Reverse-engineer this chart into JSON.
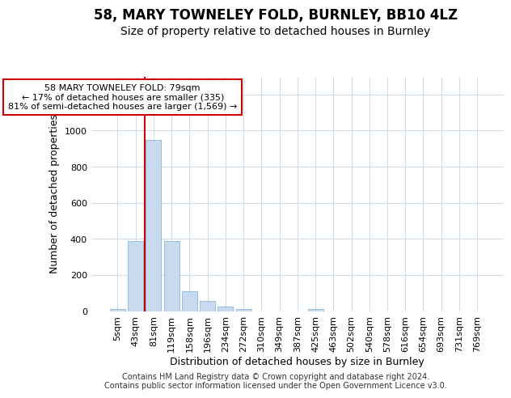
{
  "title": "58, MARY TOWNELEY FOLD, BURNLEY, BB10 4LZ",
  "subtitle": "Size of property relative to detached houses in Burnley",
  "xlabel": "Distribution of detached houses by size in Burnley",
  "ylabel": "Number of detached properties",
  "categories": [
    "5sqm",
    "43sqm",
    "81sqm",
    "119sqm",
    "158sqm",
    "196sqm",
    "234sqm",
    "272sqm",
    "310sqm",
    "349sqm",
    "387sqm",
    "425sqm",
    "463sqm",
    "502sqm",
    "540sqm",
    "578sqm",
    "616sqm",
    "654sqm",
    "693sqm",
    "731sqm",
    "769sqm"
  ],
  "values": [
    10,
    390,
    950,
    390,
    110,
    55,
    25,
    10,
    0,
    0,
    0,
    10,
    0,
    0,
    0,
    0,
    0,
    0,
    0,
    0,
    0
  ],
  "bar_color": "#c8daf0",
  "bar_edge_color": "#8ab4d8",
  "vline_color": "#cc0000",
  "annotation_text": "58 MARY TOWNELEY FOLD: 79sqm\n← 17% of detached houses are smaller (335)\n81% of semi-detached houses are larger (1,569) →",
  "ylim": [
    0,
    1300
  ],
  "yticks": [
    0,
    200,
    400,
    600,
    800,
    1000,
    1200
  ],
  "footer": "Contains HM Land Registry data © Crown copyright and database right 2024.\nContains public sector information licensed under the Open Government Licence v3.0.",
  "bg_color": "#ffffff",
  "grid_color": "#d0dce8",
  "title_fontsize": 12,
  "subtitle_fontsize": 10,
  "tick_fontsize": 8,
  "xlabel_fontsize": 9,
  "ylabel_fontsize": 9,
  "footer_fontsize": 7,
  "annotation_fontsize": 8
}
